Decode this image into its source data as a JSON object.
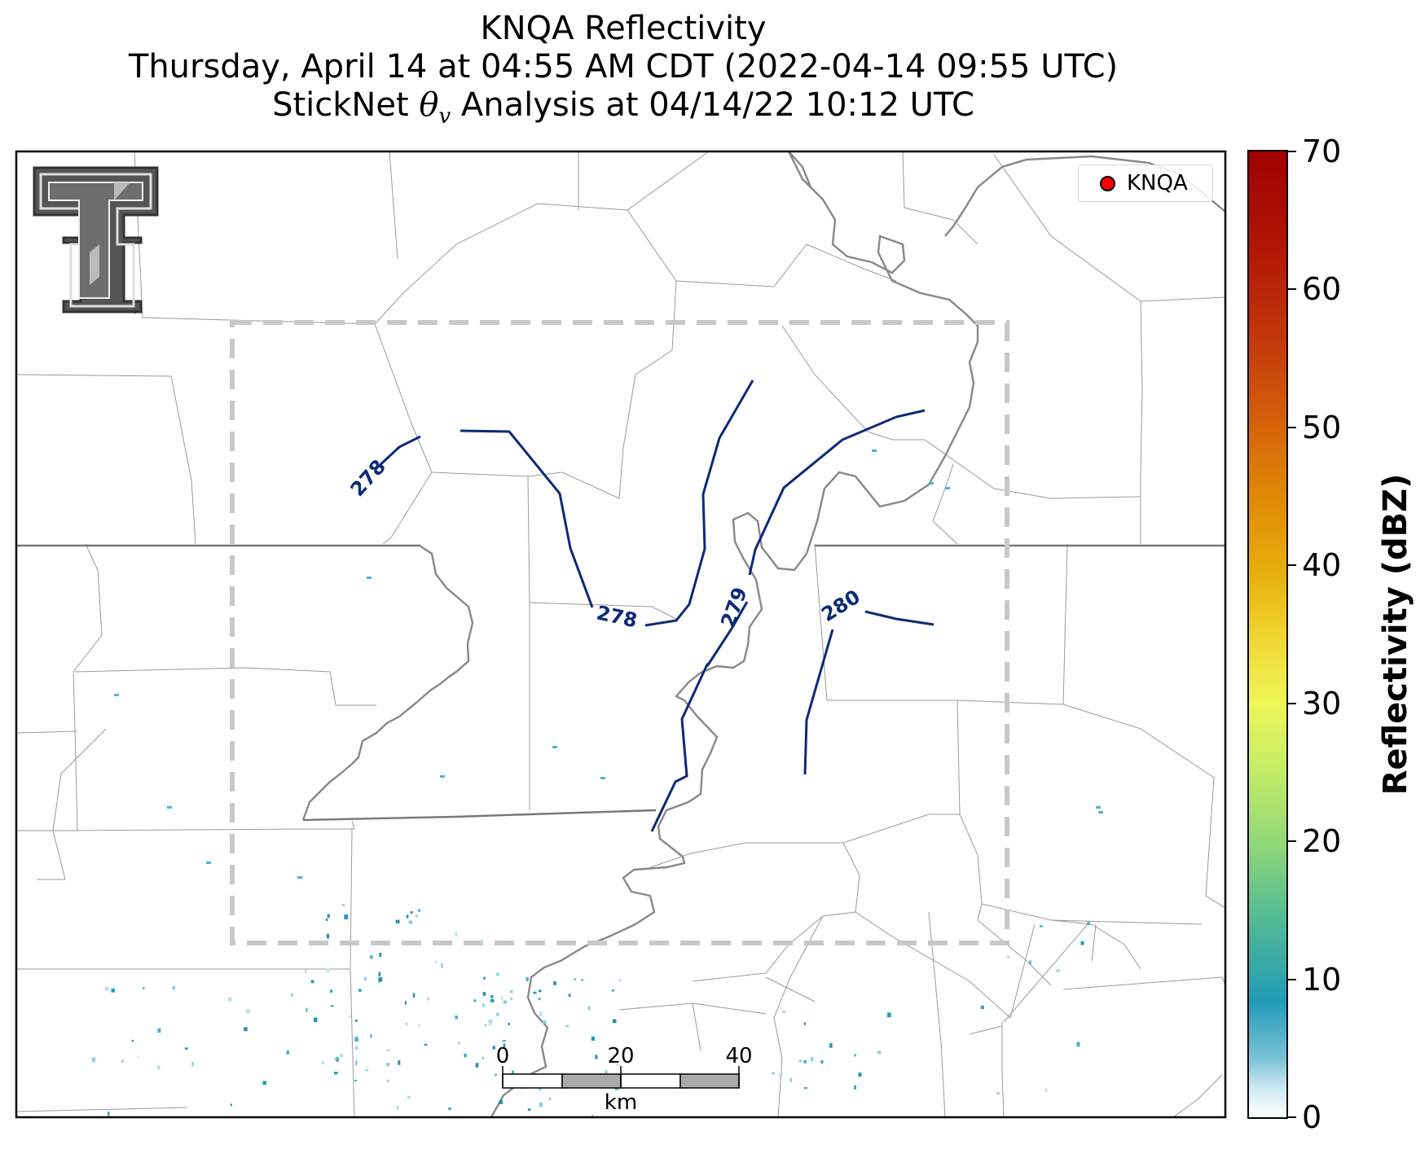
{
  "title": {
    "line1": "KNQA Reflectivity",
    "line2": "Thursday, April 14 at 04:55 AM CDT (2022-04-14 09:55 UTC)",
    "line3_prefix": "StickNet ",
    "line3_symbol": "θ",
    "line3_subscript": "v",
    "line3_suffix": " Analysis at 04/14/22 10:12 UTC"
  },
  "legend": {
    "station_label": "KNQA",
    "marker_color": "#ff0000"
  },
  "contours": {
    "color": "#0b2a78",
    "labels": [
      "278",
      "278",
      "279",
      "280"
    ]
  },
  "colorbar": {
    "title": "Reflectivity (dBZ)",
    "ticks": [
      "0",
      "10",
      "20",
      "30",
      "40",
      "50",
      "60",
      "70"
    ],
    "min": 0,
    "max": 70,
    "colormap": "pyart_HomeyerRainbow"
  },
  "scale_bar": {
    "ticks": [
      "0",
      "20",
      "40"
    ],
    "unit": "km"
  },
  "logo": {
    "name": "texas-tech-double-t-logo"
  },
  "analysis_domain": {
    "style": "gray-dashed-box"
  }
}
